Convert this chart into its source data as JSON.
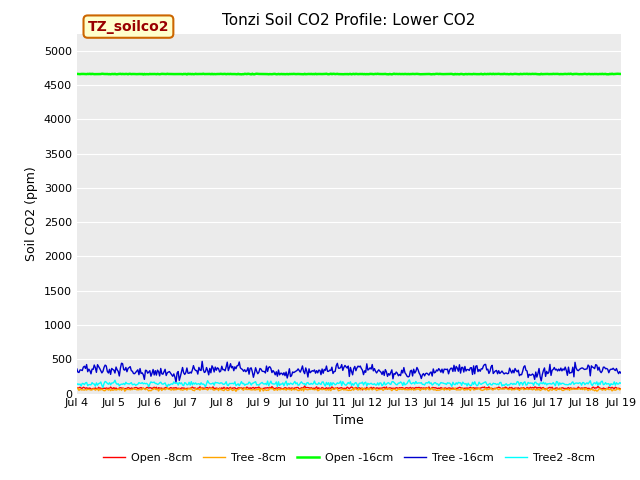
{
  "title": "Tonzi Soil CO2 Profile: Lower CO2",
  "xlabel": "Time",
  "ylabel": "Soil CO2 (ppm)",
  "ylim": [
    0,
    5250
  ],
  "yticks": [
    0,
    500,
    1000,
    1500,
    2000,
    2500,
    3000,
    3500,
    4000,
    4500,
    5000
  ],
  "x_start_day": 4,
  "x_end_day": 19,
  "xtick_days": [
    4,
    5,
    6,
    7,
    8,
    9,
    10,
    11,
    12,
    13,
    14,
    15,
    16,
    17,
    18,
    19
  ],
  "xtick_labels": [
    "Jul 4",
    "Jul 5",
    "Jul 6",
    "Jul 7",
    "Jul 8",
    "Jul 9",
    "Jul 10",
    "Jul 11",
    "Jul 12",
    "Jul 13",
    "Jul 14",
    "Jul 15",
    "Jul 16",
    "Jul 17",
    "Jul 18",
    "Jul 19"
  ],
  "series": {
    "open_8cm": {
      "label": "Open -8cm",
      "color": "#ff0000",
      "base": 80,
      "noise": 8
    },
    "tree_8cm": {
      "label": "Tree -8cm",
      "color": "#ffa500",
      "base": 60,
      "noise": 10
    },
    "open_16cm": {
      "label": "Open -16cm",
      "color": "#00ff00",
      "base": 4660,
      "noise": 2
    },
    "tree_16cm": {
      "label": "Tree -16cm",
      "color": "#0000cd",
      "base": 330,
      "noise": 40
    },
    "tree2_8cm": {
      "label": "Tree2 -8cm",
      "color": "#00ffff",
      "base": 145,
      "noise": 18
    }
  },
  "n_points": 500,
  "legend_box_label": "TZ_soilco2",
  "legend_box_facecolor": "#ffffcc",
  "legend_box_edgecolor": "#cc6600",
  "legend_box_text_color": "#990000",
  "background_color": "#ebebeb",
  "grid_color": "#ffffff",
  "title_fontsize": 11,
  "axis_label_fontsize": 9,
  "tick_fontsize": 8,
  "legend_fontsize": 8
}
